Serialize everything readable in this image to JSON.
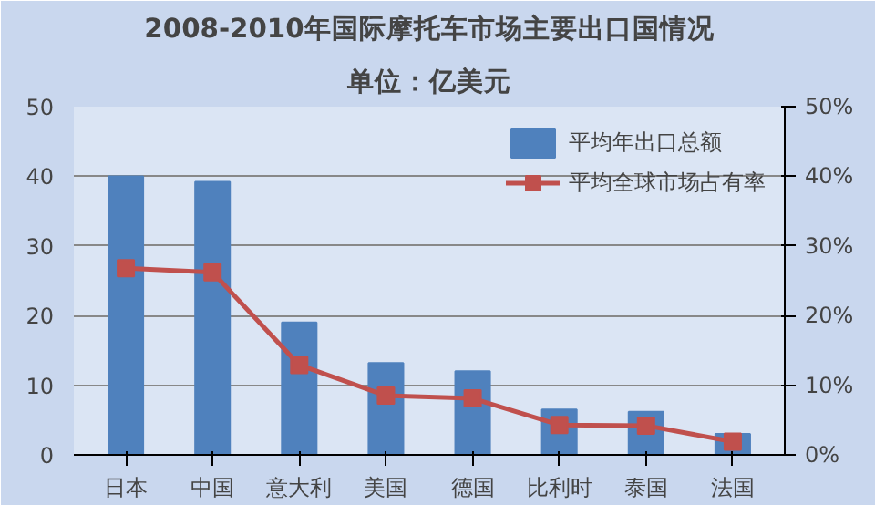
{
  "chart_data": {
    "type": "bar",
    "title": "2008-2010年国际摩托车市场主要出口国情况",
    "subtitle": "单位：亿美元",
    "categories": [
      "日本",
      "中国",
      "意大利",
      "美国",
      "德国",
      "比利时",
      "泰国",
      "法国"
    ],
    "series": [
      {
        "name": "平均年出口总额",
        "color": "#4f81bd",
        "values": [
          40,
          39.2,
          19,
          13.2,
          12,
          6.5,
          6.2,
          3
        ]
      },
      {
        "name": "平均全球市场占有率",
        "color": "#c0504d",
        "type": "line",
        "axis": "y2",
        "marker": "square",
        "values": [
          0.268,
          0.262,
          0.129,
          0.085,
          0.081,
          0.043,
          0.042,
          0.019
        ]
      }
    ],
    "ylim": [
      0,
      50
    ],
    "yticks": [
      0,
      10,
      20,
      30,
      40,
      50
    ],
    "y2lim": [
      0,
      0.5
    ],
    "y2ticks": [
      {
        "value": 0,
        "label": "0%"
      },
      {
        "value": 0.1,
        "label": "10%"
      },
      {
        "value": 0.2,
        "label": "20%"
      },
      {
        "value": 0.3,
        "label": "30%"
      },
      {
        "value": 0.4,
        "label": "40%"
      },
      {
        "value": 0.5,
        "label": "50%"
      }
    ],
    "grid": "y",
    "legend": "top right"
  }
}
